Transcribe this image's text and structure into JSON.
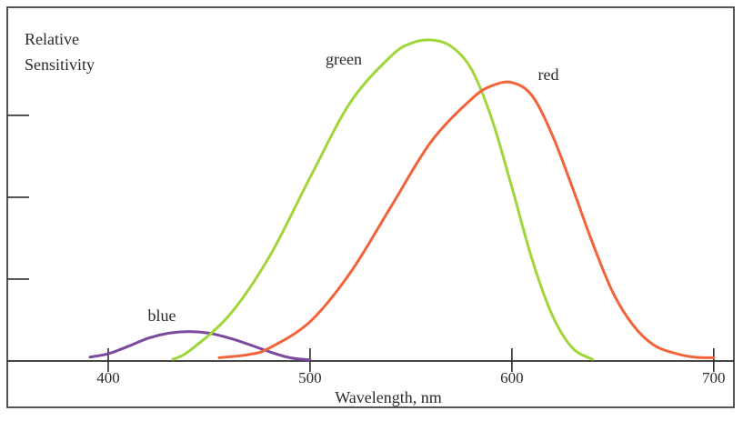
{
  "chart_data": {
    "type": "line",
    "title": "",
    "xlabel": "Wavelength, nm",
    "ylabel": "Relative Sensitivity",
    "ylabel_lines": [
      "Relative",
      "Sensitivity"
    ],
    "xlim": [
      350,
      710
    ],
    "ylim": [
      0,
      1.08
    ],
    "xticks": [
      400,
      500,
      600,
      700
    ],
    "xtick_labels": [
      "400",
      "500",
      "600",
      "700"
    ],
    "yticks": [
      0.25,
      0.5,
      0.75
    ],
    "grid": false,
    "legend": "none",
    "series": [
      {
        "name": "blue",
        "color": "#7b4a9e",
        "x": [
          391,
          400,
          410,
          420,
          430,
          440,
          450,
          460,
          470,
          480,
          490,
          500
        ],
        "y": [
          0.012,
          0.022,
          0.045,
          0.07,
          0.085,
          0.09,
          0.085,
          0.07,
          0.05,
          0.028,
          0.01,
          0.003
        ]
      },
      {
        "name": "green",
        "color": "#9fd63a",
        "x": [
          432,
          440,
          460,
          480,
          500,
          520,
          540,
          550,
          560,
          570,
          580,
          590,
          600,
          610,
          620,
          630,
          640
        ],
        "y": [
          0.005,
          0.03,
          0.14,
          0.32,
          0.56,
          0.79,
          0.93,
          0.97,
          0.98,
          0.96,
          0.89,
          0.74,
          0.53,
          0.31,
          0.14,
          0.04,
          0.005
        ]
      },
      {
        "name": "red",
        "color": "#f2633a",
        "x": [
          455,
          470,
          480,
          500,
          520,
          540,
          560,
          580,
          590,
          600,
          610,
          620,
          630,
          640,
          650,
          660,
          670,
          680,
          690,
          700
        ],
        "y": [
          0.01,
          0.02,
          0.04,
          0.12,
          0.27,
          0.47,
          0.67,
          0.8,
          0.84,
          0.85,
          0.81,
          0.69,
          0.53,
          0.36,
          0.21,
          0.11,
          0.05,
          0.025,
          0.012,
          0.01
        ]
      }
    ]
  }
}
